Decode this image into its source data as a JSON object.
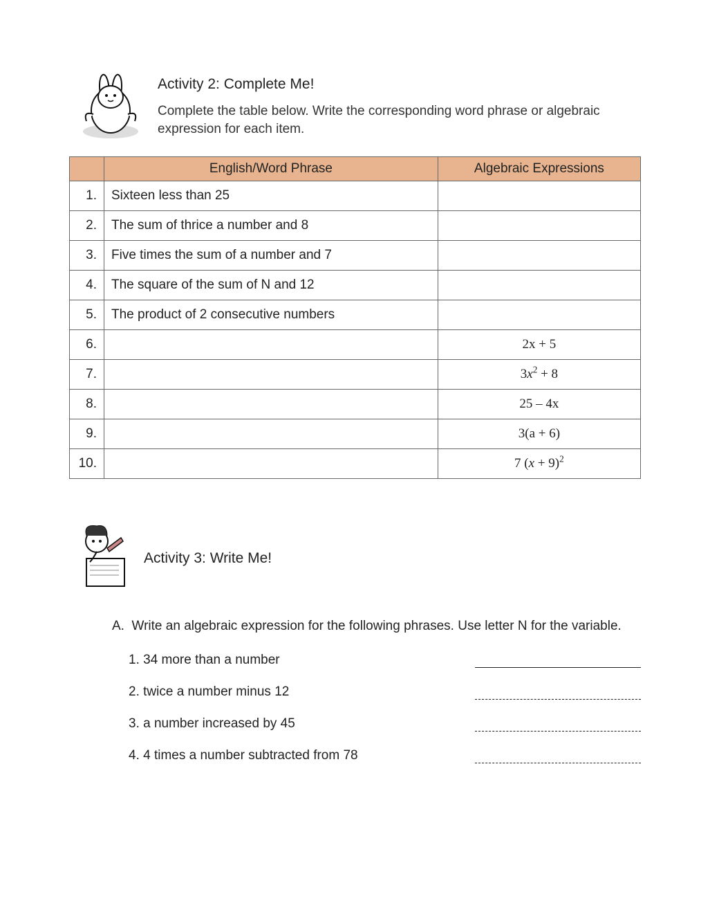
{
  "page": {
    "background_color": "#ffffff",
    "text_color": "#222222",
    "body_fontsize": 19,
    "title_fontsize": 21
  },
  "activity2": {
    "title": "Activity 2: Complete Me!",
    "subtitle": "Complete the table below. Write the corresponding word phrase or algebraic expression for each item.",
    "illustration_name": "cartoon-bunny-icon"
  },
  "table": {
    "border_color": "#666666",
    "header_bg": "#e7b48f",
    "headers": {
      "col0": "",
      "col1": "English/Word Phrase",
      "col2": "Algebraic Expressions"
    },
    "col_widths": [
      "50px",
      "auto",
      "auto"
    ],
    "rows": [
      {
        "num": "1.",
        "phrase": "Sixteen less than 25",
        "expr": ""
      },
      {
        "num": "2.",
        "phrase": "The sum of thrice a number and 8",
        "expr": ""
      },
      {
        "num": "3.",
        "phrase": "Five times the sum of a number and 7",
        "expr": ""
      },
      {
        "num": "4.",
        "phrase": "The square of the sum of N and 12",
        "expr": ""
      },
      {
        "num": "5.",
        "phrase": "The product of 2 consecutive numbers",
        "expr": ""
      },
      {
        "num": "6.",
        "phrase": "",
        "expr": "2x + 5",
        "expr_type": "linear"
      },
      {
        "num": "7.",
        "phrase": "",
        "expr": "3x² + 8",
        "expr_type": "poly"
      },
      {
        "num": "8.",
        "phrase": "",
        "expr": "25 – 4x",
        "expr_type": "minus"
      },
      {
        "num": "9.",
        "phrase": "",
        "expr": "3(a + 6)",
        "expr_type": "paren"
      },
      {
        "num": "10.",
        "phrase": "",
        "expr": "7 (x + 9)²",
        "expr_type": "paren_sq"
      }
    ]
  },
  "activity3": {
    "title": "Activity 3: Write Me!",
    "illustration_name": "cartoon-writer-icon",
    "sectionA": {
      "label": "A.",
      "instruction": "Write an algebraic expression for the following phrases. Use letter N for the variable.",
      "items": [
        {
          "num": "1.",
          "text": "34 more than a number",
          "line_style": "solid"
        },
        {
          "num": "2.",
          "text": "twice a number minus 12",
          "line_style": "dashed"
        },
        {
          "num": "3.",
          "text": "a number increased by 45",
          "line_style": "dashed"
        },
        {
          "num": "4.",
          "text": "4 times a number subtracted from 78",
          "line_style": "dashed"
        }
      ]
    }
  }
}
